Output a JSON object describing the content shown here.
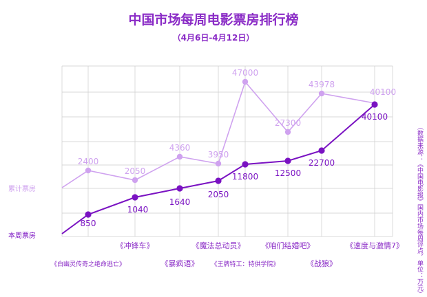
{
  "title": "中国市场每周电影票房排行榜",
  "subtitle": "（4月6日-4月12日）",
  "source_note": "（数据来源：《中国电影报》国内市场每周评点，单位：万元）",
  "colors": {
    "weekly": "#7a12c2",
    "cumulative": "#cfa2ef",
    "text": "#8a2bc6",
    "grid": "#cccccc"
  },
  "chart_data": {
    "type": "line",
    "categories": [
      "白幽灵传奇之绝命逃亡",
      "冲锋车",
      "暴疯语",
      "魔法总动员",
      "王牌特工：特供学院",
      "咱们结婚吧",
      "战狼",
      "速度与激情7"
    ],
    "category_labels": [
      "《白幽灵传奇之绝命逃亡》",
      "《冲锋车》",
      "《暴疯语》",
      "《魔法总动员》",
      "《王牌特工：特供学院》",
      "《咱们结婚吧》",
      "《战狼》",
      "《速度与激情7》"
    ],
    "series": [
      {
        "name": "本周票房",
        "values": [
          850,
          1040,
          1640,
          2050,
          11800,
          12500,
          22700,
          40100
        ]
      },
      {
        "name": "累计票房",
        "values": [
          2400,
          2050,
          4360,
          3950,
          47000,
          27300,
          43978,
          40100
        ]
      }
    ],
    "grid": true
  }
}
